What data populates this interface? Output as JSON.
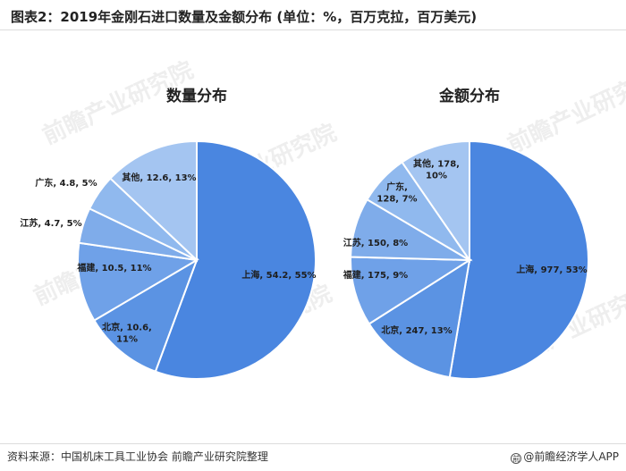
{
  "title": "图表2：2019年金刚石进口数量及金额分布 (单位：%，百万克拉，百万美元)",
  "source": "资料来源：中国机床工具工业协会 前瞻产业研究院整理",
  "brand": "@前瞻经济学人APP",
  "watermark": "前瞻产业研究院",
  "colors": {
    "shanghai": "#4A86E0",
    "beijing": "#5B93E3",
    "fujian": "#6FA1E8",
    "jiangsu": "#7FACEA",
    "guangdong": "#90B9EE",
    "other": "#A4C5F1"
  },
  "chart_data": [
    {
      "type": "pie",
      "title": "数量分布",
      "slices": [
        {
          "name": "上海",
          "value": 54.2,
          "pct": 55,
          "label": "上海, 54.2, 55%",
          "color_key": "shanghai"
        },
        {
          "name": "北京",
          "value": 10.6,
          "pct": 11,
          "label": "北京, 10.6,\n11%",
          "color_key": "beijing"
        },
        {
          "name": "福建",
          "value": 10.5,
          "pct": 11,
          "label": "福建, 10.5, 11%",
          "color_key": "fujian"
        },
        {
          "name": "江苏",
          "value": 4.7,
          "pct": 5,
          "label": "江苏, 4.7, 5%",
          "color_key": "jiangsu"
        },
        {
          "name": "广东",
          "value": 4.8,
          "pct": 5,
          "label": "广东, 4.8, 5%",
          "color_key": "guangdong"
        },
        {
          "name": "其他",
          "value": 12.6,
          "pct": 13,
          "label": "其他, 12.6, 13%",
          "color_key": "other"
        }
      ]
    },
    {
      "type": "pie",
      "title": "金额分布",
      "slices": [
        {
          "name": "上海",
          "value": 977,
          "pct": 53,
          "label": "上海, 977, 53%",
          "color_key": "shanghai"
        },
        {
          "name": "北京",
          "value": 247,
          "pct": 13,
          "label": "北京, 247, 13%",
          "color_key": "beijing"
        },
        {
          "name": "福建",
          "value": 175,
          "pct": 9,
          "label": "福建, 175, 9%",
          "color_key": "fujian"
        },
        {
          "name": "江苏",
          "value": 150,
          "pct": 8,
          "label": "江苏, 150, 8%",
          "color_key": "jiangsu"
        },
        {
          "name": "广东",
          "value": 128,
          "pct": 7,
          "label": "广东,\n128, 7%",
          "color_key": "guangdong"
        },
        {
          "name": "其他",
          "value": 178,
          "pct": 10,
          "label": "其他, 178,\n10%",
          "color_key": "other"
        }
      ]
    }
  ]
}
